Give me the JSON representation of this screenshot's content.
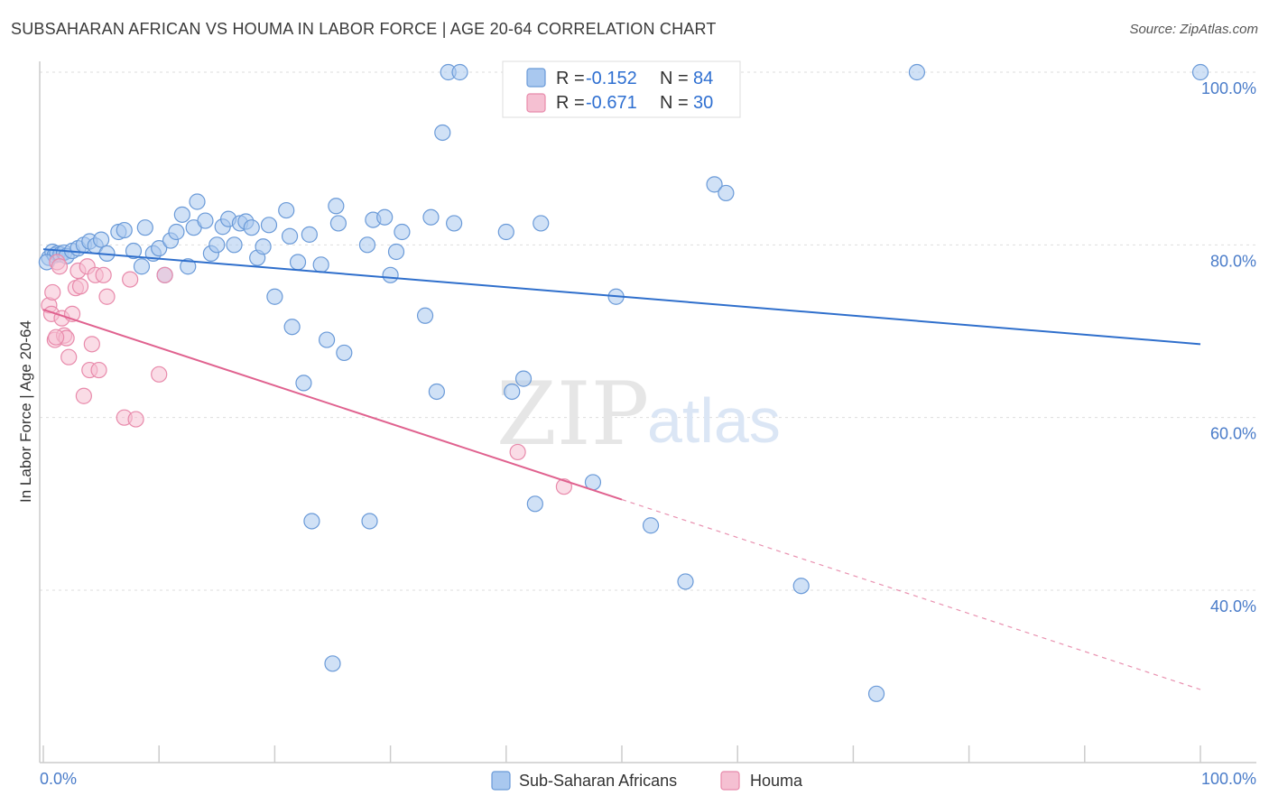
{
  "title": "SUBSAHARAN AFRICAN VS HOUMA IN LABOR FORCE | AGE 20-64 CORRELATION CHART",
  "source": "Source: ZipAtlas.com",
  "watermark": {
    "part1": "ZIP",
    "part2": "atlas"
  },
  "legend": {
    "row1": {
      "r_label": "R =",
      "r_value": "-0.152",
      "n_label": "N =",
      "n_value": "84"
    },
    "row2": {
      "r_label": "R =",
      "r_value": "-0.671",
      "n_label": "N =",
      "n_value": "30"
    }
  },
  "colors": {
    "blue_fill": "#a9c8ef",
    "blue_stroke": "#6a9ad8",
    "blue_line": "#2f6fcc",
    "pink_fill": "#f5c0d2",
    "pink_stroke": "#e88aab",
    "pink_line": "#e0628f",
    "tick_text": "#4a7cc9"
  },
  "chart_data": {
    "type": "scatter",
    "title": "SUBSAHARAN AFRICAN VS HOUMA IN LABOR FORCE | AGE 20-64 CORRELATION CHART",
    "xlabel": "",
    "ylabel": "In Labor Force | Age 20-64",
    "xlim": [
      0,
      100
    ],
    "ylim": [
      20,
      102
    ],
    "x_ticks": [
      "0.0%",
      "100.0%"
    ],
    "y_ticks": [
      {
        "value": 100,
        "label": "100.0%"
      },
      {
        "value": 80,
        "label": "80.0%"
      },
      {
        "value": 60,
        "label": "60.0%"
      },
      {
        "value": 40,
        "label": "40.0%"
      }
    ],
    "grid": true,
    "legend_position": "top-center",
    "series": [
      {
        "name": "Sub-Saharan Africans",
        "color": "#a9c8ef",
        "trend": {
          "x0": 0,
          "y0": 79.5,
          "x1": 100,
          "y1": 68.5
        },
        "points": [
          [
            0.5,
            78.5
          ],
          [
            0.8,
            79.2
          ],
          [
            1.0,
            78.8
          ],
          [
            1.2,
            79.0
          ],
          [
            1.5,
            78.9
          ],
          [
            1.8,
            79.1
          ],
          [
            2.0,
            78.7
          ],
          [
            2.5,
            79.3
          ],
          [
            3.0,
            79.6
          ],
          [
            3.5,
            80.0
          ],
          [
            4.0,
            80.4
          ],
          [
            4.5,
            79.9
          ],
          [
            5.0,
            80.6
          ],
          [
            5.5,
            79.0
          ],
          [
            6.5,
            81.5
          ],
          [
            7.0,
            81.7
          ],
          [
            7.8,
            79.3
          ],
          [
            8.5,
            77.5
          ],
          [
            8.8,
            82.0
          ],
          [
            9.5,
            79.0
          ],
          [
            10.0,
            79.6
          ],
          [
            10.5,
            76.5
          ],
          [
            11.0,
            80.5
          ],
          [
            11.5,
            81.5
          ],
          [
            12.0,
            83.5
          ],
          [
            12.5,
            77.5
          ],
          [
            13.0,
            82.0
          ],
          [
            13.3,
            85.0
          ],
          [
            14.0,
            82.8
          ],
          [
            14.5,
            79.0
          ],
          [
            15.0,
            80.0
          ],
          [
            15.5,
            82.1
          ],
          [
            16.0,
            83.0
          ],
          [
            16.5,
            80.0
          ],
          [
            17.0,
            82.5
          ],
          [
            17.5,
            82.7
          ],
          [
            18.0,
            82.0
          ],
          [
            18.5,
            78.5
          ],
          [
            19.0,
            79.8
          ],
          [
            19.5,
            82.3
          ],
          [
            20.0,
            74.0
          ],
          [
            21.0,
            84.0
          ],
          [
            21.3,
            81.0
          ],
          [
            21.5,
            70.5
          ],
          [
            22.0,
            78.0
          ],
          [
            22.5,
            64.0
          ],
          [
            23.0,
            81.2
          ],
          [
            23.2,
            48.0
          ],
          [
            24.0,
            77.7
          ],
          [
            24.5,
            69.0
          ],
          [
            25.0,
            31.5
          ],
          [
            25.3,
            84.5
          ],
          [
            25.5,
            82.5
          ],
          [
            26.0,
            67.5
          ],
          [
            28.0,
            80.0
          ],
          [
            28.2,
            48.0
          ],
          [
            28.5,
            82.9
          ],
          [
            29.5,
            83.2
          ],
          [
            30.0,
            76.5
          ],
          [
            30.5,
            79.2
          ],
          [
            31.0,
            81.5
          ],
          [
            33.0,
            71.8
          ],
          [
            33.5,
            83.2
          ],
          [
            34.0,
            63.0
          ],
          [
            34.5,
            93.0
          ],
          [
            35.0,
            100.0
          ],
          [
            35.5,
            82.5
          ],
          [
            36.0,
            100.0
          ],
          [
            40.0,
            81.5
          ],
          [
            40.5,
            63.0
          ],
          [
            41.5,
            64.5
          ],
          [
            42.5,
            50.0
          ],
          [
            43.0,
            82.5
          ],
          [
            47.5,
            52.5
          ],
          [
            49.5,
            74.0
          ],
          [
            52.5,
            47.5
          ],
          [
            55.5,
            41.0
          ],
          [
            58.0,
            87.0
          ],
          [
            59.0,
            86.0
          ],
          [
            65.5,
            40.5
          ],
          [
            72.0,
            28.0
          ],
          [
            75.5,
            100.0
          ],
          [
            100.0,
            100.0
          ],
          [
            0.3,
            78.0
          ]
        ]
      },
      {
        "name": "Houma",
        "color": "#f5c0d2",
        "trend": {
          "x0": 0,
          "y0": 72.5,
          "x1": 50,
          "y1": 50.5,
          "dash_x1": 100,
          "dash_y1": 28.5
        },
        "points": [
          [
            0.5,
            73.0
          ],
          [
            0.7,
            72.0
          ],
          [
            0.8,
            74.5
          ],
          [
            1.0,
            69.0
          ],
          [
            1.2,
            78.0
          ],
          [
            1.4,
            77.5
          ],
          [
            1.6,
            71.5
          ],
          [
            1.8,
            69.5
          ],
          [
            2.0,
            69.2
          ],
          [
            2.2,
            67.0
          ],
          [
            2.5,
            72.0
          ],
          [
            2.8,
            75.0
          ],
          [
            3.0,
            77.0
          ],
          [
            3.2,
            75.2
          ],
          [
            3.5,
            62.5
          ],
          [
            3.8,
            77.5
          ],
          [
            4.0,
            65.5
          ],
          [
            4.2,
            68.5
          ],
          [
            4.5,
            76.5
          ],
          [
            4.8,
            65.5
          ],
          [
            5.2,
            76.5
          ],
          [
            5.5,
            74.0
          ],
          [
            7.0,
            60.0
          ],
          [
            7.5,
            76.0
          ],
          [
            8.0,
            59.8
          ],
          [
            10.0,
            65.0
          ],
          [
            10.5,
            76.5
          ],
          [
            41.0,
            56.0
          ],
          [
            45.0,
            52.0
          ],
          [
            1.1,
            69.3
          ]
        ]
      }
    ]
  },
  "bottom_legend": {
    "item1": "Sub-Saharan Africans",
    "item2": "Houma"
  }
}
